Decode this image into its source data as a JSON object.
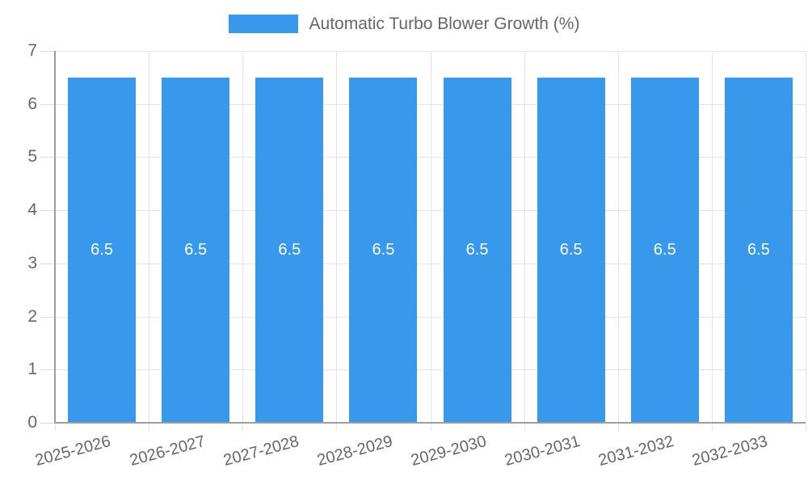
{
  "chart_data": {
    "type": "bar",
    "title": "Automatic Turbo Blower Growth (%)",
    "categories": [
      "2025-2026",
      "2026-2027",
      "2027-2028",
      "2028-2029",
      "2029-2030",
      "2030-2031",
      "2031-2032",
      "2032-2033"
    ],
    "values": [
      6.5,
      6.5,
      6.5,
      6.5,
      6.5,
      6.5,
      6.5,
      6.5
    ],
    "value_labels": [
      "6.5",
      "6.5",
      "6.5",
      "6.5",
      "6.5",
      "6.5",
      "6.5",
      "6.5"
    ],
    "xlabel": "",
    "ylabel": "",
    "ylim": [
      0,
      7
    ],
    "y_ticks": [
      0,
      1,
      2,
      3,
      4,
      5,
      6,
      7
    ],
    "grid": true,
    "legend_position": "top",
    "bar_color": "#3899ec",
    "bar_label_color": "#ffffff",
    "grid_color": "#e3e3e3",
    "axis_color": "#9e9e9e",
    "tick_label_color": "#666666"
  },
  "legend": {
    "label": "Automatic Turbo Blower Growth (%)"
  }
}
